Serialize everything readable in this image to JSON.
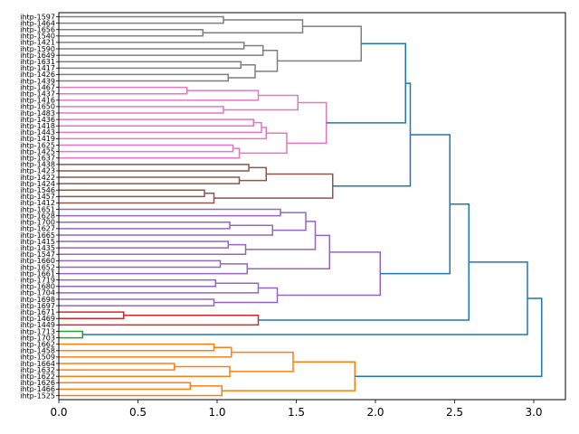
{
  "chart_data": {
    "type": "dendrogram",
    "orientation": "right",
    "title": "",
    "xlabel": "",
    "ylabel": "",
    "xlim": [
      0,
      3.2
    ],
    "xticks": [
      0.0,
      0.5,
      1.0,
      1.5,
      2.0,
      2.5,
      3.0
    ],
    "xtick_labels": [
      "0.0",
      "0.5",
      "1.0",
      "1.5",
      "2.0",
      "2.5",
      "3.0"
    ],
    "colors": {
      "gray": "#7f7f7f",
      "pink": "#e377c2",
      "brown": "#8c564b",
      "purple": "#9467bd",
      "red": "#d62728",
      "green": "#2ca02c",
      "orange": "#ff7f0e",
      "above_threshold": "#1f77b4"
    },
    "leaves": [
      "ihtp-1597",
      "ihtp-1464",
      "ihtp-1656",
      "ihtp-1540",
      "ihtp-1421",
      "ihtp-1590",
      "ihtp-1649",
      "ihtp-1631",
      "ihtp-1417",
      "ihtp-1426",
      "ihtp-1439",
      "ihtp-1467",
      "ihtp-1437",
      "ihtp-1416",
      "ihtp-1650",
      "ihtp-1483",
      "ihtp-1436",
      "ihtp-1418",
      "ihtp-1443",
      "ihtp-1419",
      "ihtp-1625",
      "ihtp-1425",
      "ihtp-1637",
      "ihtp-1438",
      "ihtp-1423",
      "ihtp-1422",
      "ihtp-1424",
      "ihtp-1546",
      "ihtp-1457",
      "ihtp-1412",
      "ihtp-1651",
      "ihtp-1628",
      "ihtp-1700",
      "ihtp-1627",
      "ihtp-1665",
      "ihtp-1415",
      "ihtp-1435",
      "ihtp-1547",
      "ihtp-1660",
      "ihtp-1652",
      "ihtp-1661",
      "ihtp-1719",
      "ihtp-1680",
      "ihtp-1704",
      "ihtp-1698",
      "ihtp-1697",
      "ihtp-1671",
      "ihtp-1469",
      "ihtp-1449",
      "ihtp-1713",
      "ihtp-1703",
      "ihtp-1662",
      "ihtp-1458",
      "ihtp-1509",
      "ihtp-1664",
      "ihtp-1632",
      "ihtp-1622",
      "ihtp-1626",
      "ihtp-1466",
      "ihtp-1525"
    ],
    "tree": {
      "h": 3.05,
      "c": "above_threshold",
      "ch": [
        {
          "h": 2.96,
          "c": "above_threshold",
          "ch": [
            {
              "h": 2.59,
              "c": "above_threshold",
              "ch": [
                {
                  "h": 2.47,
                  "c": "above_threshold",
                  "ch": [
                    {
                      "h": 2.22,
                      "c": "above_threshold",
                      "ch": [
                        {
                          "h": 2.19,
                          "c": "above_threshold",
                          "ch": [
                            {
                              "h": 1.91,
                              "c": "gray",
                              "ch": [
                                {
                                  "h": 1.54,
                                  "c": "gray",
                                  "ch": [
                                    {
                                      "h": 1.04,
                                      "c": "gray",
                                      "ch": [
                                        0,
                                        1
                                      ]
                                    },
                                    {
                                      "h": 0.91,
                                      "c": "gray",
                                      "ch": [
                                        2,
                                        3
                                      ]
                                    }
                                  ]
                                },
                                {
                                  "h": 1.38,
                                  "c": "gray",
                                  "ch": [
                                    {
                                      "h": 1.29,
                                      "c": "gray",
                                      "ch": [
                                        {
                                          "h": 1.17,
                                          "c": "gray",
                                          "ch": [
                                            4,
                                            5
                                          ]
                                        },
                                        6
                                      ]
                                    },
                                    {
                                      "h": 1.24,
                                      "c": "gray",
                                      "ch": [
                                        {
                                          "h": 1.15,
                                          "c": "gray",
                                          "ch": [
                                            7,
                                            8
                                          ]
                                        },
                                        {
                                          "h": 1.07,
                                          "c": "gray",
                                          "ch": [
                                            9,
                                            10
                                          ]
                                        }
                                      ]
                                    }
                                  ]
                                }
                              ]
                            },
                            {
                              "h": 1.69,
                              "c": "pink",
                              "ch": [
                                {
                                  "h": 1.51,
                                  "c": "pink",
                                  "ch": [
                                    {
                                      "h": 1.26,
                                      "c": "pink",
                                      "ch": [
                                        {
                                          "h": 0.81,
                                          "c": "pink",
                                          "ch": [
                                            11,
                                            12
                                          ]
                                        },
                                        13
                                      ]
                                    },
                                    {
                                      "h": 1.04,
                                      "c": "pink",
                                      "ch": [
                                        14,
                                        15
                                      ]
                                    }
                                  ]
                                },
                                {
                                  "h": 1.44,
                                  "c": "pink",
                                  "ch": [
                                    {
                                      "h": 1.31,
                                      "c": "pink",
                                      "ch": [
                                        {
                                          "h": 1.28,
                                          "c": "pink",
                                          "ch": [
                                            {
                                              "h": 1.23,
                                              "c": "pink",
                                              "ch": [
                                                16,
                                                17
                                              ]
                                            },
                                            18
                                          ]
                                        },
                                        19
                                      ]
                                    },
                                    {
                                      "h": 1.14,
                                      "c": "pink",
                                      "ch": [
                                        {
                                          "h": 1.1,
                                          "c": "pink",
                                          "ch": [
                                            20,
                                            21
                                          ]
                                        },
                                        22
                                      ]
                                    }
                                  ]
                                }
                              ]
                            }
                          ]
                        },
                        {
                          "h": 1.73,
                          "c": "brown",
                          "ch": [
                            {
                              "h": 1.31,
                              "c": "brown",
                              "ch": [
                                {
                                  "h": 1.2,
                                  "c": "brown",
                                  "ch": [
                                    23,
                                    24
                                  ]
                                },
                                {
                                  "h": 1.14,
                                  "c": "brown",
                                  "ch": [
                                    25,
                                    26
                                  ]
                                }
                              ]
                            },
                            {
                              "h": 0.98,
                              "c": "brown",
                              "ch": [
                                {
                                  "h": 0.92,
                                  "c": "brown",
                                  "ch": [
                                    27,
                                    28
                                  ]
                                },
                                29
                              ]
                            }
                          ]
                        }
                      ]
                    },
                    {
                      "h": 2.03,
                      "c": "purple",
                      "ch": [
                        {
                          "h": 1.71,
                          "c": "purple",
                          "ch": [
                            {
                              "h": 1.62,
                              "c": "purple",
                              "ch": [
                                {
                                  "h": 1.56,
                                  "c": "purple",
                                  "ch": [
                                    {
                                      "h": 1.4,
                                      "c": "purple",
                                      "ch": [
                                        30,
                                        31
                                      ]
                                    },
                                    {
                                      "h": 1.35,
                                      "c": "purple",
                                      "ch": [
                                        {
                                          "h": 1.08,
                                          "c": "purple",
                                          "ch": [
                                            32,
                                            33
                                          ]
                                        },
                                        34
                                      ]
                                    }
                                  ]
                                },
                                {
                                  "h": 1.18,
                                  "c": "purple",
                                  "ch": [
                                    {
                                      "h": 1.07,
                                      "c": "purple",
                                      "ch": [
                                        35,
                                        36
                                      ]
                                    },
                                    37
                                  ]
                                }
                              ]
                            },
                            {
                              "h": 1.19,
                              "c": "purple",
                              "ch": [
                                {
                                  "h": 1.02,
                                  "c": "purple",
                                  "ch": [
                                    38,
                                    39
                                  ]
                                },
                                40
                              ]
                            }
                          ]
                        },
                        {
                          "h": 1.38,
                          "c": "purple",
                          "ch": [
                            {
                              "h": 1.26,
                              "c": "purple",
                              "ch": [
                                {
                                  "h": 0.99,
                                  "c": "purple",
                                  "ch": [
                                    41,
                                    42
                                  ]
                                },
                                43
                              ]
                            },
                            {
                              "h": 0.98,
                              "c": "purple",
                              "ch": [
                                44,
                                45
                              ]
                            }
                          ]
                        }
                      ]
                    }
                  ]
                },
                {
                  "h": 1.26,
                  "c": "red",
                  "ch": [
                    {
                      "h": 0.41,
                      "c": "red",
                      "ch": [
                        46,
                        47
                      ]
                    },
                    48
                  ]
                }
              ]
            },
            {
              "h": 0.15,
              "c": "green",
              "ch": [
                49,
                50
              ]
            }
          ]
        },
        {
          "h": 1.87,
          "c": "orange",
          "ch": [
            {
              "h": 1.48,
              "c": "orange",
              "ch": [
                {
                  "h": 1.09,
                  "c": "orange",
                  "ch": [
                    {
                      "h": 0.98,
                      "c": "orange",
                      "ch": [
                        51,
                        52
                      ]
                    },
                    53
                  ]
                },
                {
                  "h": 1.08,
                  "c": "orange",
                  "ch": [
                    {
                      "h": 0.73,
                      "c": "orange",
                      "ch": [
                        54,
                        55
                      ]
                    },
                    56
                  ]
                }
              ]
            },
            {
              "h": 1.03,
              "c": "orange",
              "ch": [
                {
                  "h": 0.83,
                  "c": "orange",
                  "ch": [
                    57,
                    58
                  ]
                },
                59
              ]
            }
          ]
        }
      ]
    }
  }
}
